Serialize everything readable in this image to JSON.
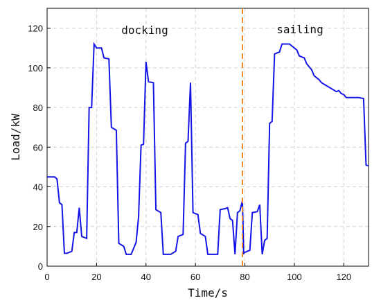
{
  "chart_data": {
    "type": "line",
    "xlabel": "Time/s",
    "ylabel": "Load/kW",
    "annotations": [
      "docking",
      "sailing"
    ],
    "vline": {
      "x": 79,
      "color": "#f08a24"
    },
    "x": [
      0,
      3,
      4,
      5,
      6,
      7,
      8,
      10,
      11,
      12,
      13,
      14,
      16,
      17,
      18,
      19,
      20,
      22,
      23,
      25,
      26,
      28,
      29,
      31,
      32,
      34,
      36,
      37,
      38,
      39,
      40,
      41,
      43,
      44,
      46,
      47,
      50,
      52,
      53,
      55,
      56,
      57,
      58,
      59,
      61,
      62,
      64,
      65,
      69,
      70,
      72,
      73,
      74,
      75,
      76,
      77,
      78,
      79,
      79.5,
      80,
      82,
      83,
      85,
      86,
      87,
      88,
      89,
      90,
      91,
      92,
      94,
      95,
      98,
      100,
      101,
      102,
      104,
      105,
      107,
      108,
      110,
      111,
      113,
      115,
      117,
      118,
      119,
      120,
      121,
      126,
      128,
      129,
      130
    ],
    "series": [
      {
        "name": "Load",
        "color": "#1414e6",
        "values": [
          45,
          45,
          44,
          32,
          31,
          6.5,
          6.5,
          7.5,
          17,
          17,
          29.5,
          15,
          14,
          80,
          80,
          112,
          110,
          110,
          105,
          104.5,
          70,
          68.5,
          11.5,
          10,
          6,
          6,
          12,
          25,
          61,
          61.5,
          103,
          93,
          92.5,
          28.5,
          27,
          6,
          6,
          7.5,
          15,
          16,
          62,
          63,
          92.5,
          27,
          26,
          16.5,
          15,
          6,
          6,
          28.5,
          29,
          29.5,
          24,
          23,
          6,
          27,
          28,
          33,
          6.5,
          7,
          8,
          27,
          27.5,
          31,
          6,
          13,
          14,
          72,
          73,
          107,
          108,
          112,
          112,
          110,
          109,
          106,
          105,
          102,
          99,
          96,
          94,
          92.5,
          91,
          89.5,
          88,
          88.5,
          87,
          86.5,
          85,
          85,
          84.5,
          51,
          50.5
        ]
      }
    ],
    "xlim": [
      0,
      130
    ],
    "xticks": [
      0,
      20,
      40,
      60,
      80,
      100,
      120
    ],
    "ylim": [
      0,
      130
    ],
    "yticks": [
      0,
      20,
      40,
      60,
      80,
      100,
      120
    ],
    "grid": true
  }
}
